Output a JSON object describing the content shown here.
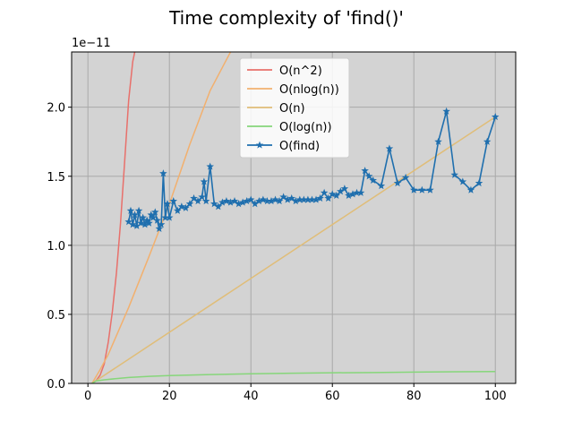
{
  "chart_data": {
    "type": "line",
    "title": "Time complexity of 'find()'",
    "xlabel": "",
    "ylabel": "",
    "y_scale_label": "1e−11",
    "xlim": [
      -4,
      105
    ],
    "ylim": [
      0,
      2.4
    ],
    "x_ticks": [
      0,
      20,
      40,
      60,
      80,
      100
    ],
    "x_tick_labels": [
      "0",
      "20",
      "40",
      "60",
      "80",
      "100"
    ],
    "y_ticks": [
      0.0,
      0.5,
      1.0,
      1.5,
      2.0
    ],
    "y_tick_labels": [
      "0.0",
      "0.5",
      "1.0",
      "1.5",
      "2.0"
    ],
    "grid": true,
    "background": "#d3d3d3",
    "legend_position": "top-center",
    "series": [
      {
        "name": "O(n^2)",
        "color": "#e8706b",
        "x": [
          1,
          2,
          3,
          4,
          5,
          6,
          7,
          8,
          9,
          10,
          11,
          11.5
        ],
        "values": [
          0.002,
          0.02,
          0.06,
          0.14,
          0.3,
          0.52,
          0.8,
          1.16,
          1.6,
          2.05,
          2.33,
          2.4
        ]
      },
      {
        "name": "O(nlog(n))",
        "color": "#f2b06e",
        "x": [
          1,
          3,
          5,
          10,
          15,
          20,
          25,
          30,
          35
        ],
        "values": [
          0.0,
          0.1,
          0.21,
          0.55,
          0.92,
          1.3,
          1.73,
          2.12,
          2.4
        ]
      },
      {
        "name": "O(n)",
        "color": "#e0bd78",
        "x": [
          1,
          100
        ],
        "values": [
          0.0,
          1.93
        ]
      },
      {
        "name": "O(log(n))",
        "color": "#86d67a",
        "x": [
          1,
          2,
          4,
          7,
          10,
          15,
          20,
          30,
          40,
          50,
          60,
          70,
          80,
          90,
          100
        ],
        "values": [
          0.0,
          0.018,
          0.026,
          0.035,
          0.043,
          0.051,
          0.057,
          0.064,
          0.07,
          0.074,
          0.077,
          0.079,
          0.082,
          0.084,
          0.086
        ]
      },
      {
        "name": "O(find)",
        "color": "#1f6fae",
        "marker": "star",
        "x": [
          10,
          10.5,
          11,
          11.5,
          12,
          12.5,
          13,
          13.5,
          14,
          14.5,
          15,
          15.5,
          16,
          16.5,
          17,
          17.5,
          18,
          18.5,
          19,
          19.5,
          20,
          21,
          22,
          23,
          24,
          25,
          26,
          27,
          28,
          28.5,
          29,
          30,
          31,
          32,
          33,
          34,
          35,
          36,
          37,
          38,
          39,
          40,
          41,
          42,
          43,
          44,
          45,
          46,
          47,
          48,
          49,
          50,
          51,
          52,
          53,
          54,
          55,
          56,
          57,
          58,
          59,
          60,
          61,
          62,
          63,
          64,
          65,
          66,
          67,
          68,
          69,
          70,
          72,
          74,
          76,
          78,
          80,
          82,
          84,
          86,
          88,
          90,
          92,
          94,
          96,
          98,
          100
        ],
        "values": [
          1.17,
          1.25,
          1.15,
          1.22,
          1.14,
          1.25,
          1.16,
          1.2,
          1.15,
          1.18,
          1.16,
          1.22,
          1.2,
          1.24,
          1.18,
          1.12,
          1.15,
          1.52,
          1.2,
          1.3,
          1.2,
          1.32,
          1.25,
          1.28,
          1.27,
          1.3,
          1.34,
          1.32,
          1.35,
          1.46,
          1.32,
          1.57,
          1.3,
          1.28,
          1.31,
          1.32,
          1.31,
          1.32,
          1.3,
          1.31,
          1.32,
          1.33,
          1.3,
          1.32,
          1.33,
          1.32,
          1.32,
          1.33,
          1.32,
          1.35,
          1.33,
          1.34,
          1.32,
          1.33,
          1.33,
          1.33,
          1.33,
          1.33,
          1.34,
          1.38,
          1.34,
          1.37,
          1.36,
          1.39,
          1.41,
          1.36,
          1.37,
          1.38,
          1.38,
          1.54,
          1.5,
          1.47,
          1.43,
          1.7,
          1.45,
          1.49,
          1.4,
          1.4,
          1.4,
          1.75,
          1.97,
          1.51,
          1.46,
          1.4,
          1.45,
          1.75,
          1.93
        ]
      }
    ]
  }
}
